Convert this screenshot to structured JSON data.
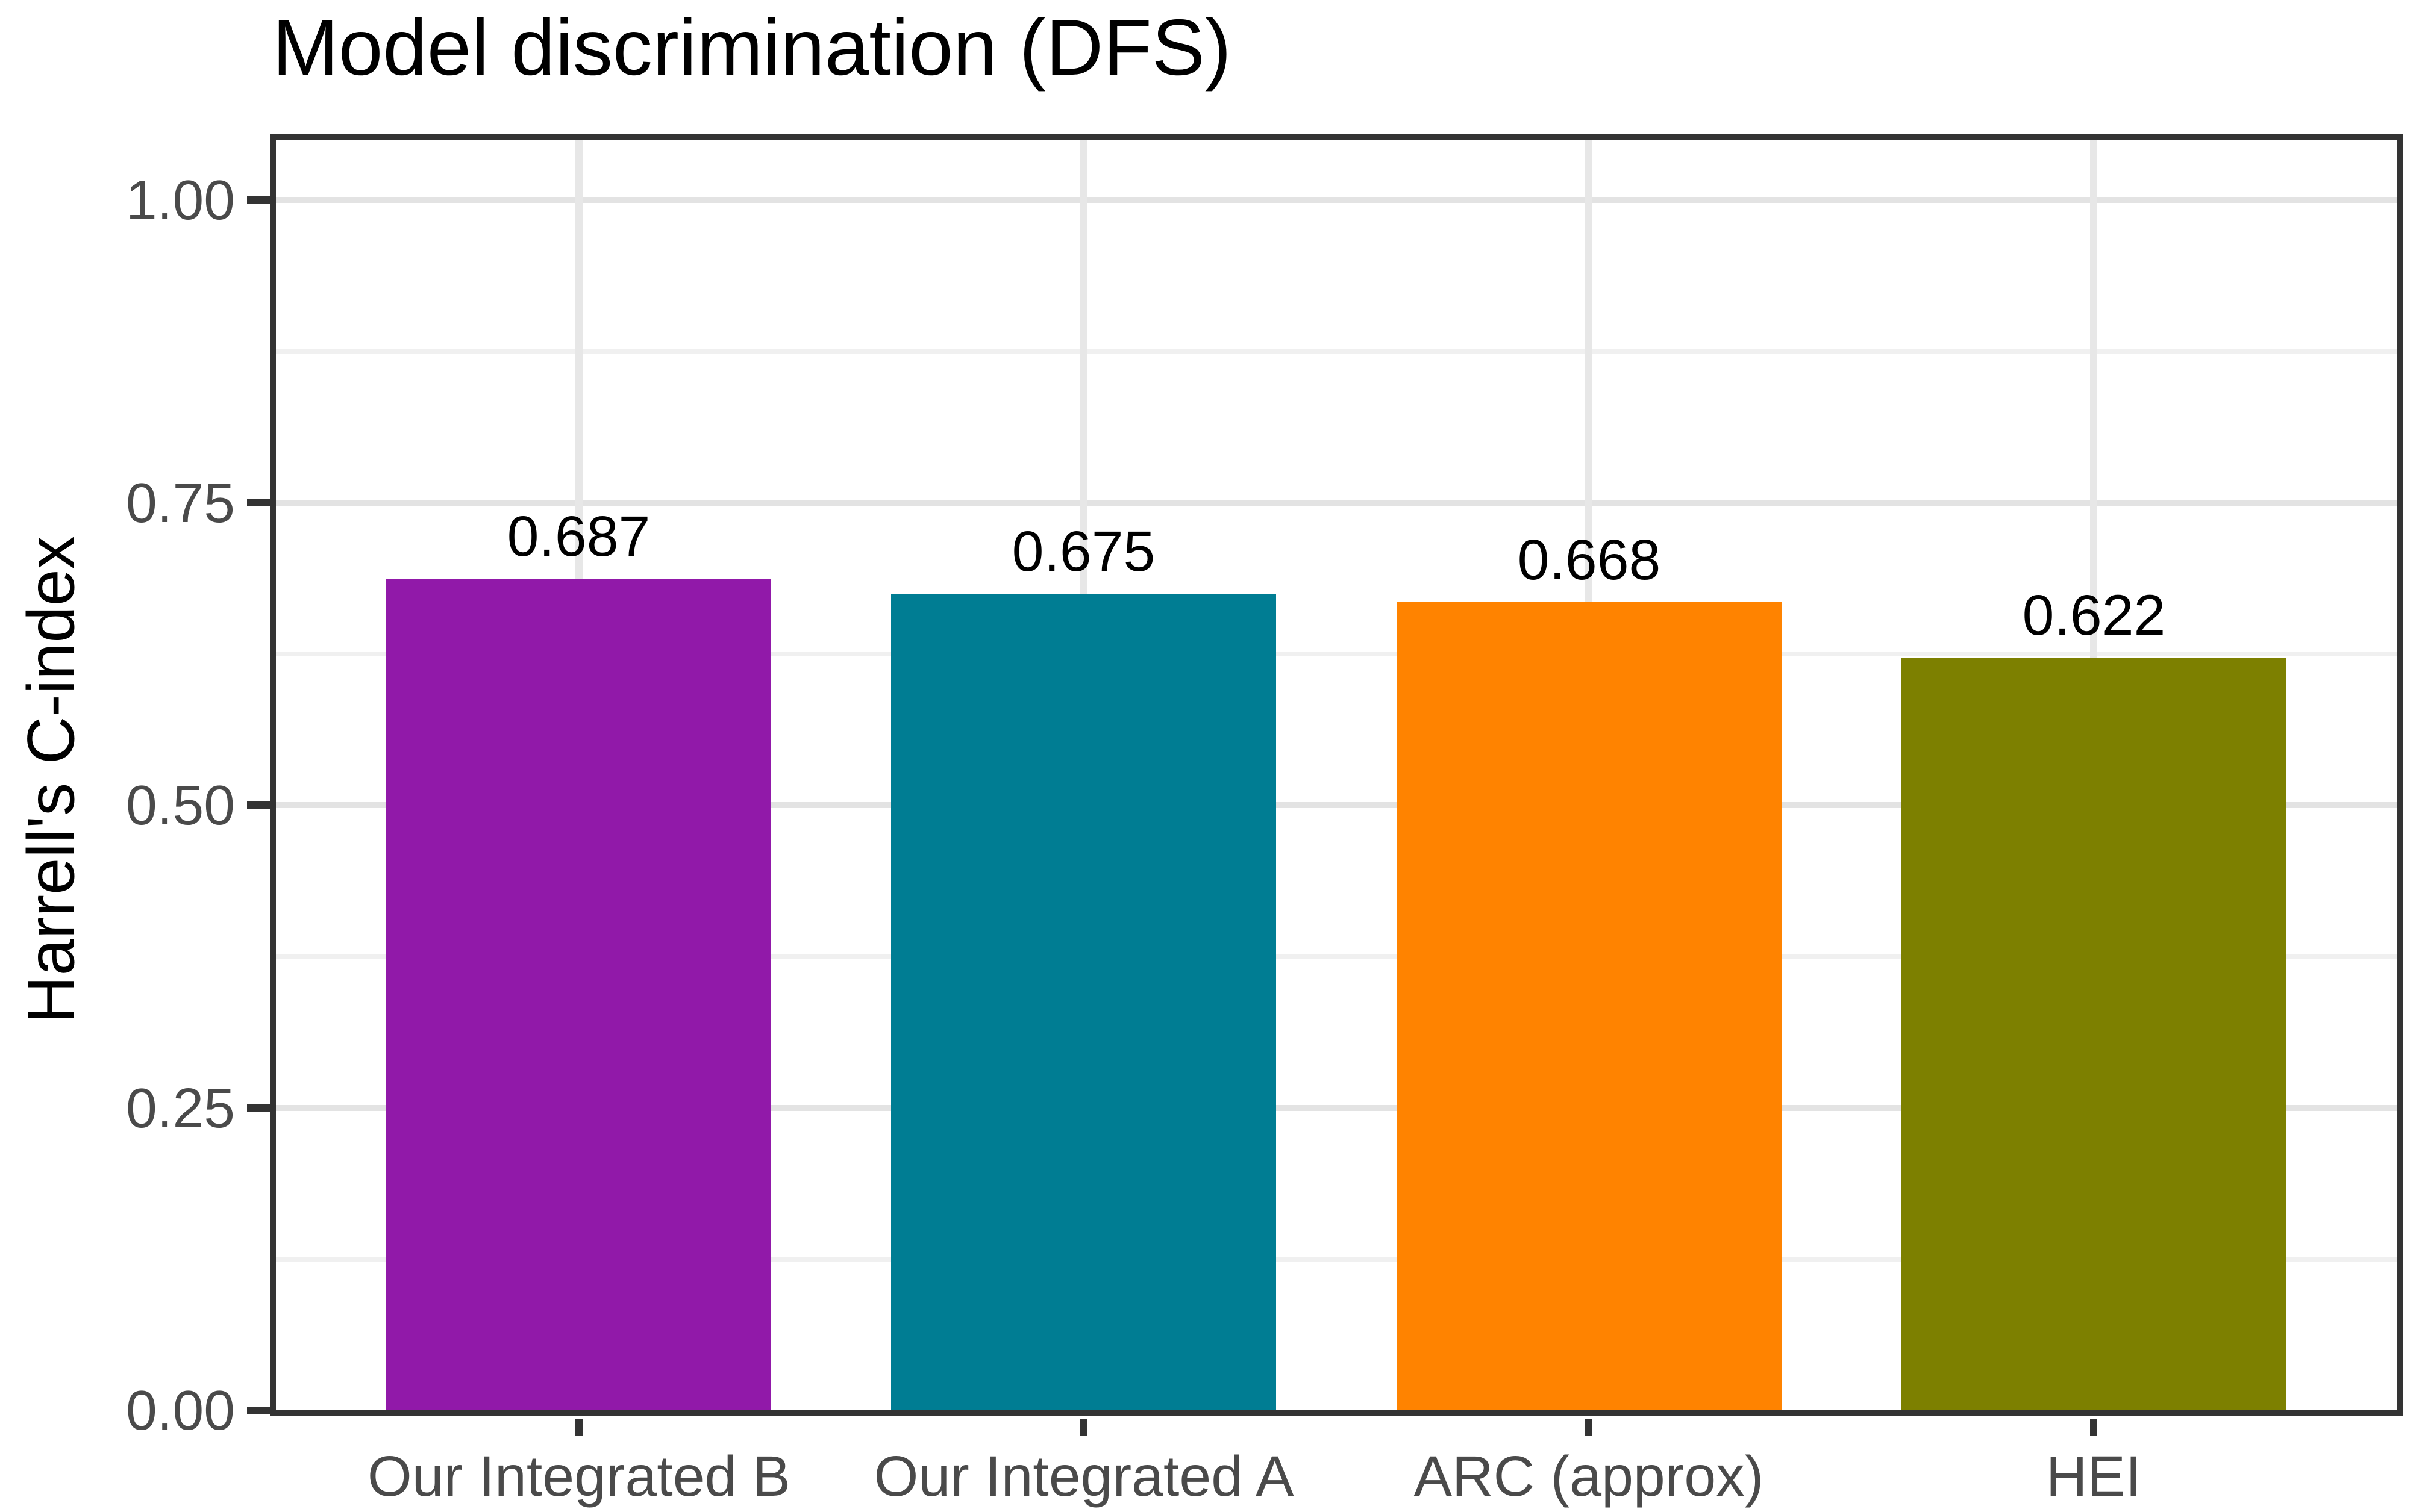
{
  "chart_data": {
    "type": "bar",
    "title": "Model discrimination (DFS)",
    "ylabel": "Harrell's C-index",
    "xlabel": "",
    "categories": [
      "Our Integrated B",
      "Our Integrated A",
      "ARC (approx)",
      "HEI"
    ],
    "values": [
      0.687,
      0.675,
      0.668,
      0.622
    ],
    "value_labels": [
      "0.687",
      "0.675",
      "0.668",
      "0.622"
    ],
    "bar_colors": [
      "#9119A9",
      "#007D93",
      "#FF8300",
      "#7D8000"
    ],
    "ylim": [
      0,
      1.05
    ],
    "y_major_breaks": [
      0,
      0.25,
      0.5,
      0.75,
      1
    ],
    "y_tick_labels": [
      "0.00",
      "0.25",
      "0.50",
      "0.75",
      "1.00"
    ],
    "y_minor_breaks": [
      0.125,
      0.375,
      0.625,
      0.875
    ],
    "grid": "horizontal major+minor, vertical major at category centers",
    "legend_position": "none",
    "colors": {
      "background": "#FFFFFF",
      "panel_border": "#333333",
      "tick_mark": "#333333",
      "grid_major": "#E3E3E3",
      "grid_minor": "#F0F0F0",
      "grid_vertical": "#E7E7E7",
      "axis_text": "#4A4A4A",
      "title_text": "#000000",
      "value_label_text": "#000000"
    }
  }
}
